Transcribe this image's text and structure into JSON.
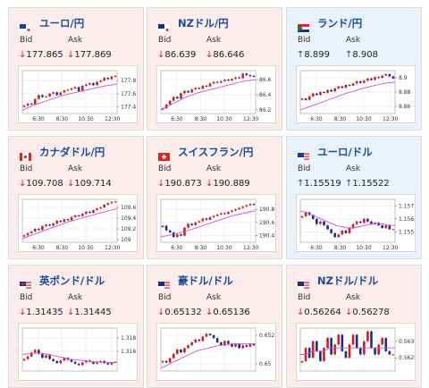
{
  "colors": {
    "rise": "#d0201b",
    "fall": "#1b2f8a",
    "moving_average": "#d14fd6",
    "down_card_bg": "#fbecec",
    "up_card_bg": "#e9f1fb",
    "title_blue": "#1a4c9a"
  },
  "labels": {
    "bid": "Bid",
    "ask": "Ask"
  },
  "cards": [
    {
      "pair": "ユーロ/円",
      "flag": "eu-jp-flag-icon",
      "direction": "down",
      "bid": "177.865",
      "ask": "177.869",
      "chart_data": {
        "type": "candlestick",
        "x_ticks": [
          "6:30",
          "8:30",
          "10:30",
          "12:30"
        ],
        "y_ticks": [
          "177.4",
          "177.6",
          "177.8"
        ],
        "ylim": [
          177.3,
          177.95
        ],
        "close": [
          177.42,
          177.45,
          177.44,
          177.52,
          177.58,
          177.55,
          177.56,
          177.6,
          177.62,
          177.58,
          177.62,
          177.65,
          177.66,
          177.68,
          177.7,
          177.64,
          177.72,
          177.74,
          177.76,
          177.73,
          177.78,
          177.8,
          177.84,
          177.82,
          177.86,
          177.87
        ],
        "ma": [
          177.35,
          177.39,
          177.43,
          177.46,
          177.49,
          177.52,
          177.55,
          177.58,
          177.6,
          177.62,
          177.64,
          177.66,
          177.68,
          177.7,
          177.72,
          177.73,
          177.75
        ]
      }
    },
    {
      "pair": "NZドル/円",
      "flag": "nz-jp-flag-icon",
      "direction": "down",
      "bid": "86.639",
      "ask": "86.646",
      "chart_data": {
        "type": "candlestick",
        "x_ticks": [
          "6:30",
          "8:30",
          "10:30",
          "12:30"
        ],
        "y_ticks": [
          "86.2",
          "86.4",
          "86.6"
        ],
        "ylim": [
          86.15,
          86.72
        ],
        "close": [
          86.22,
          86.27,
          86.32,
          86.37,
          86.35,
          86.42,
          86.45,
          86.43,
          86.47,
          86.49,
          86.48,
          86.52,
          86.51,
          86.55,
          86.57,
          86.56,
          86.58,
          86.6,
          86.59,
          86.61,
          86.63,
          86.62,
          86.68,
          86.66,
          86.65,
          86.64
        ],
        "ma": [
          86.2,
          86.24,
          86.28,
          86.32,
          86.36,
          86.39,
          86.42,
          86.44,
          86.46,
          86.48,
          86.5,
          86.52,
          86.54,
          86.56,
          86.58,
          86.59,
          86.6
        ]
      }
    },
    {
      "pair": "ランド/円",
      "flag": "za-jp-flag-icon",
      "direction": "up",
      "bid": "8.899",
      "ask": "8.908",
      "chart_data": {
        "type": "candlestick",
        "x_ticks": [
          "6:30",
          "8:30",
          "10:30",
          "12:30"
        ],
        "y_ticks": [
          "8.86",
          "8.88",
          "8.9"
        ],
        "ylim": [
          8.85,
          8.91
        ],
        "close": [
          8.871,
          8.869,
          8.874,
          8.878,
          8.876,
          8.88,
          8.879,
          8.883,
          8.881,
          8.885,
          8.888,
          8.886,
          8.89,
          8.889,
          8.892,
          8.895,
          8.893,
          8.896,
          8.899,
          8.897,
          8.901,
          8.9,
          8.903,
          8.905,
          8.902,
          8.899
        ],
        "ma": [
          8.855,
          8.858,
          8.861,
          8.864,
          8.867,
          8.87,
          8.873,
          8.876,
          8.879,
          8.881,
          8.884,
          8.886,
          8.888,
          8.89,
          8.892,
          8.893,
          8.894
        ]
      }
    },
    {
      "pair": "カナダドル/円",
      "flag": "ca-jp-flag-icon",
      "direction": "down",
      "bid": "109.708",
      "ask": "109.714",
      "chart_data": {
        "type": "candlestick",
        "x_ticks": [
          "6:30",
          "8:30",
          "10:30",
          "12:30"
        ],
        "y_ticks": [
          "109",
          "109.2",
          "109.4",
          "109.6"
        ],
        "ylim": [
          108.95,
          109.75
        ],
        "close": [
          109.08,
          109.12,
          109.15,
          109.2,
          109.18,
          109.25,
          109.28,
          109.26,
          109.3,
          109.35,
          109.33,
          109.38,
          109.36,
          109.42,
          109.45,
          109.44,
          109.48,
          109.52,
          109.5,
          109.55,
          109.58,
          109.6,
          109.65,
          109.68,
          109.7,
          109.71
        ],
        "ma": [
          109.02,
          109.06,
          109.1,
          109.14,
          109.18,
          109.22,
          109.26,
          109.3,
          109.34,
          109.37,
          109.4,
          109.43,
          109.46,
          109.49,
          109.52,
          109.55,
          109.58
        ]
      }
    },
    {
      "pair": "スイスフラン/円",
      "flag": "ch-jp-flag-icon",
      "direction": "down",
      "bid": "190.873",
      "ask": "190.889",
      "chart_data": {
        "type": "candlestick",
        "x_ticks": [
          "6:30",
          "8:30",
          "10:30",
          "12:30"
        ],
        "y_ticks": [
          "190.4",
          "190.6",
          "190.8"
        ],
        "ylim": [
          190.3,
          190.95
        ],
        "close": [
          190.55,
          190.48,
          190.45,
          190.38,
          190.42,
          190.4,
          190.52,
          190.58,
          190.56,
          190.6,
          190.62,
          190.66,
          190.64,
          190.68,
          190.7,
          190.72,
          190.74,
          190.73,
          190.76,
          190.78,
          190.8,
          190.82,
          190.84,
          190.86,
          190.88,
          190.87
        ],
        "ma": [
          190.38,
          190.4,
          190.42,
          190.44,
          190.46,
          190.49,
          190.52,
          190.55,
          190.58,
          190.61,
          190.64,
          190.67,
          190.7,
          190.72,
          190.74,
          190.76,
          190.78
        ]
      }
    },
    {
      "pair": "ユーロ/ドル",
      "flag": "eu-us-flag-icon",
      "direction": "up",
      "bid": "1.15519",
      "ask": "1.15522",
      "chart_data": {
        "type": "candlestick",
        "x_ticks": [
          "6:30",
          "8:30",
          "10:30",
          "12:30"
        ],
        "y_ticks": [
          "1.155",
          "1.156",
          "1.157"
        ],
        "ylim": [
          1.1542,
          1.1575
        ],
        "close": [
          1.1562,
          1.1565,
          1.1563,
          1.156,
          1.1556,
          1.1558,
          1.1555,
          1.1552,
          1.1549,
          1.1546,
          1.1548,
          1.1551,
          1.1549,
          1.1553,
          1.1556,
          1.1558,
          1.1557,
          1.156,
          1.1558,
          1.1556,
          1.1557,
          1.1555,
          1.1553,
          1.1555,
          1.1552,
          1.1552
        ],
        "ma": [
          1.1566,
          1.1565,
          1.1563,
          1.1561,
          1.1559,
          1.1557,
          1.1555,
          1.1554,
          1.1553,
          1.1553,
          1.1554,
          1.1555,
          1.1556,
          1.1556,
          1.1556,
          1.1555,
          1.1555
        ]
      }
    },
    {
      "pair": "英ポンド/ドル",
      "flag": "gb-us-flag-icon",
      "direction": "down",
      "bid": "1.31435",
      "ask": "1.31445",
      "chart_data": {
        "type": "candlestick",
        "x_ticks": [],
        "y_ticks": [
          "1.316",
          "1.318"
        ],
        "ylim": [
          1.313,
          1.3195
        ],
        "close": [
          1.3148,
          1.3152,
          1.3158,
          1.3162,
          1.3156,
          1.315,
          1.3154,
          1.3148,
          1.3145,
          1.3142,
          1.3146,
          1.315,
          1.3147,
          1.3144,
          1.3141,
          1.3139,
          1.3143,
          1.3146,
          1.3144,
          1.3141,
          1.3143,
          1.3145,
          1.3142,
          1.314,
          1.3143,
          1.3144
        ],
        "ma": [
          1.3155,
          1.3156,
          1.3157,
          1.3157,
          1.3156,
          1.3154,
          1.3152,
          1.315,
          1.3148,
          1.3147,
          1.3146,
          1.3145,
          1.3144,
          1.3144,
          1.3143,
          1.3143,
          1.3143
        ]
      }
    },
    {
      "pair": "豪ドル/ドル",
      "flag": "au-us-flag-icon",
      "direction": "down",
      "bid": "0.65132",
      "ask": "0.65136",
      "chart_data": {
        "type": "candlestick",
        "x_ticks": [],
        "y_ticks": [
          "0.65",
          "0.652"
        ],
        "ylim": [
          0.6495,
          0.6525
        ],
        "close": [
          0.6502,
          0.6501,
          0.6504,
          0.6507,
          0.651,
          0.6508,
          0.6511,
          0.6513,
          0.6515,
          0.6517,
          0.6516,
          0.6519,
          0.6521,
          0.652,
          0.6518,
          0.6515,
          0.6513,
          0.6516,
          0.6514,
          0.6512,
          0.6514,
          0.6511,
          0.6513,
          0.6512,
          0.6514,
          0.6513
        ],
        "ma": [
          0.6497,
          0.6499,
          0.6501,
          0.6503,
          0.6505,
          0.6507,
          0.6509,
          0.651,
          0.6511,
          0.6512,
          0.6513,
          0.6513,
          0.6514,
          0.6514,
          0.6514,
          0.6514,
          0.6514
        ]
      }
    },
    {
      "pair": "NZドル/ドル",
      "flag": "nz-us-flag-icon",
      "direction": "down",
      "bid": "0.56264",
      "ask": "0.56278",
      "chart_data": {
        "type": "candlestick",
        "x_ticks": [],
        "y_ticks": [
          "0.5625",
          "0.563"
        ],
        "ylim": [
          0.5621,
          0.5634
        ],
        "close": [
          0.5624,
          0.5628,
          0.5625,
          0.563,
          0.5627,
          0.5624,
          0.5628,
          0.5631,
          0.5626,
          0.5629,
          0.5632,
          0.5627,
          0.5625,
          0.5629,
          0.5632,
          0.5628,
          0.5626,
          0.563,
          0.5633,
          0.5628,
          0.5626,
          0.5629,
          0.5631,
          0.5627,
          0.5626,
          0.5626
        ],
        "ma": [
          0.5626,
          0.5626,
          0.5627,
          0.5627,
          0.5627,
          0.5628,
          0.5628,
          0.5628,
          0.5628,
          0.5628,
          0.5628,
          0.5628,
          0.5628,
          0.5628,
          0.5628,
          0.5628,
          0.5628
        ]
      }
    }
  ]
}
